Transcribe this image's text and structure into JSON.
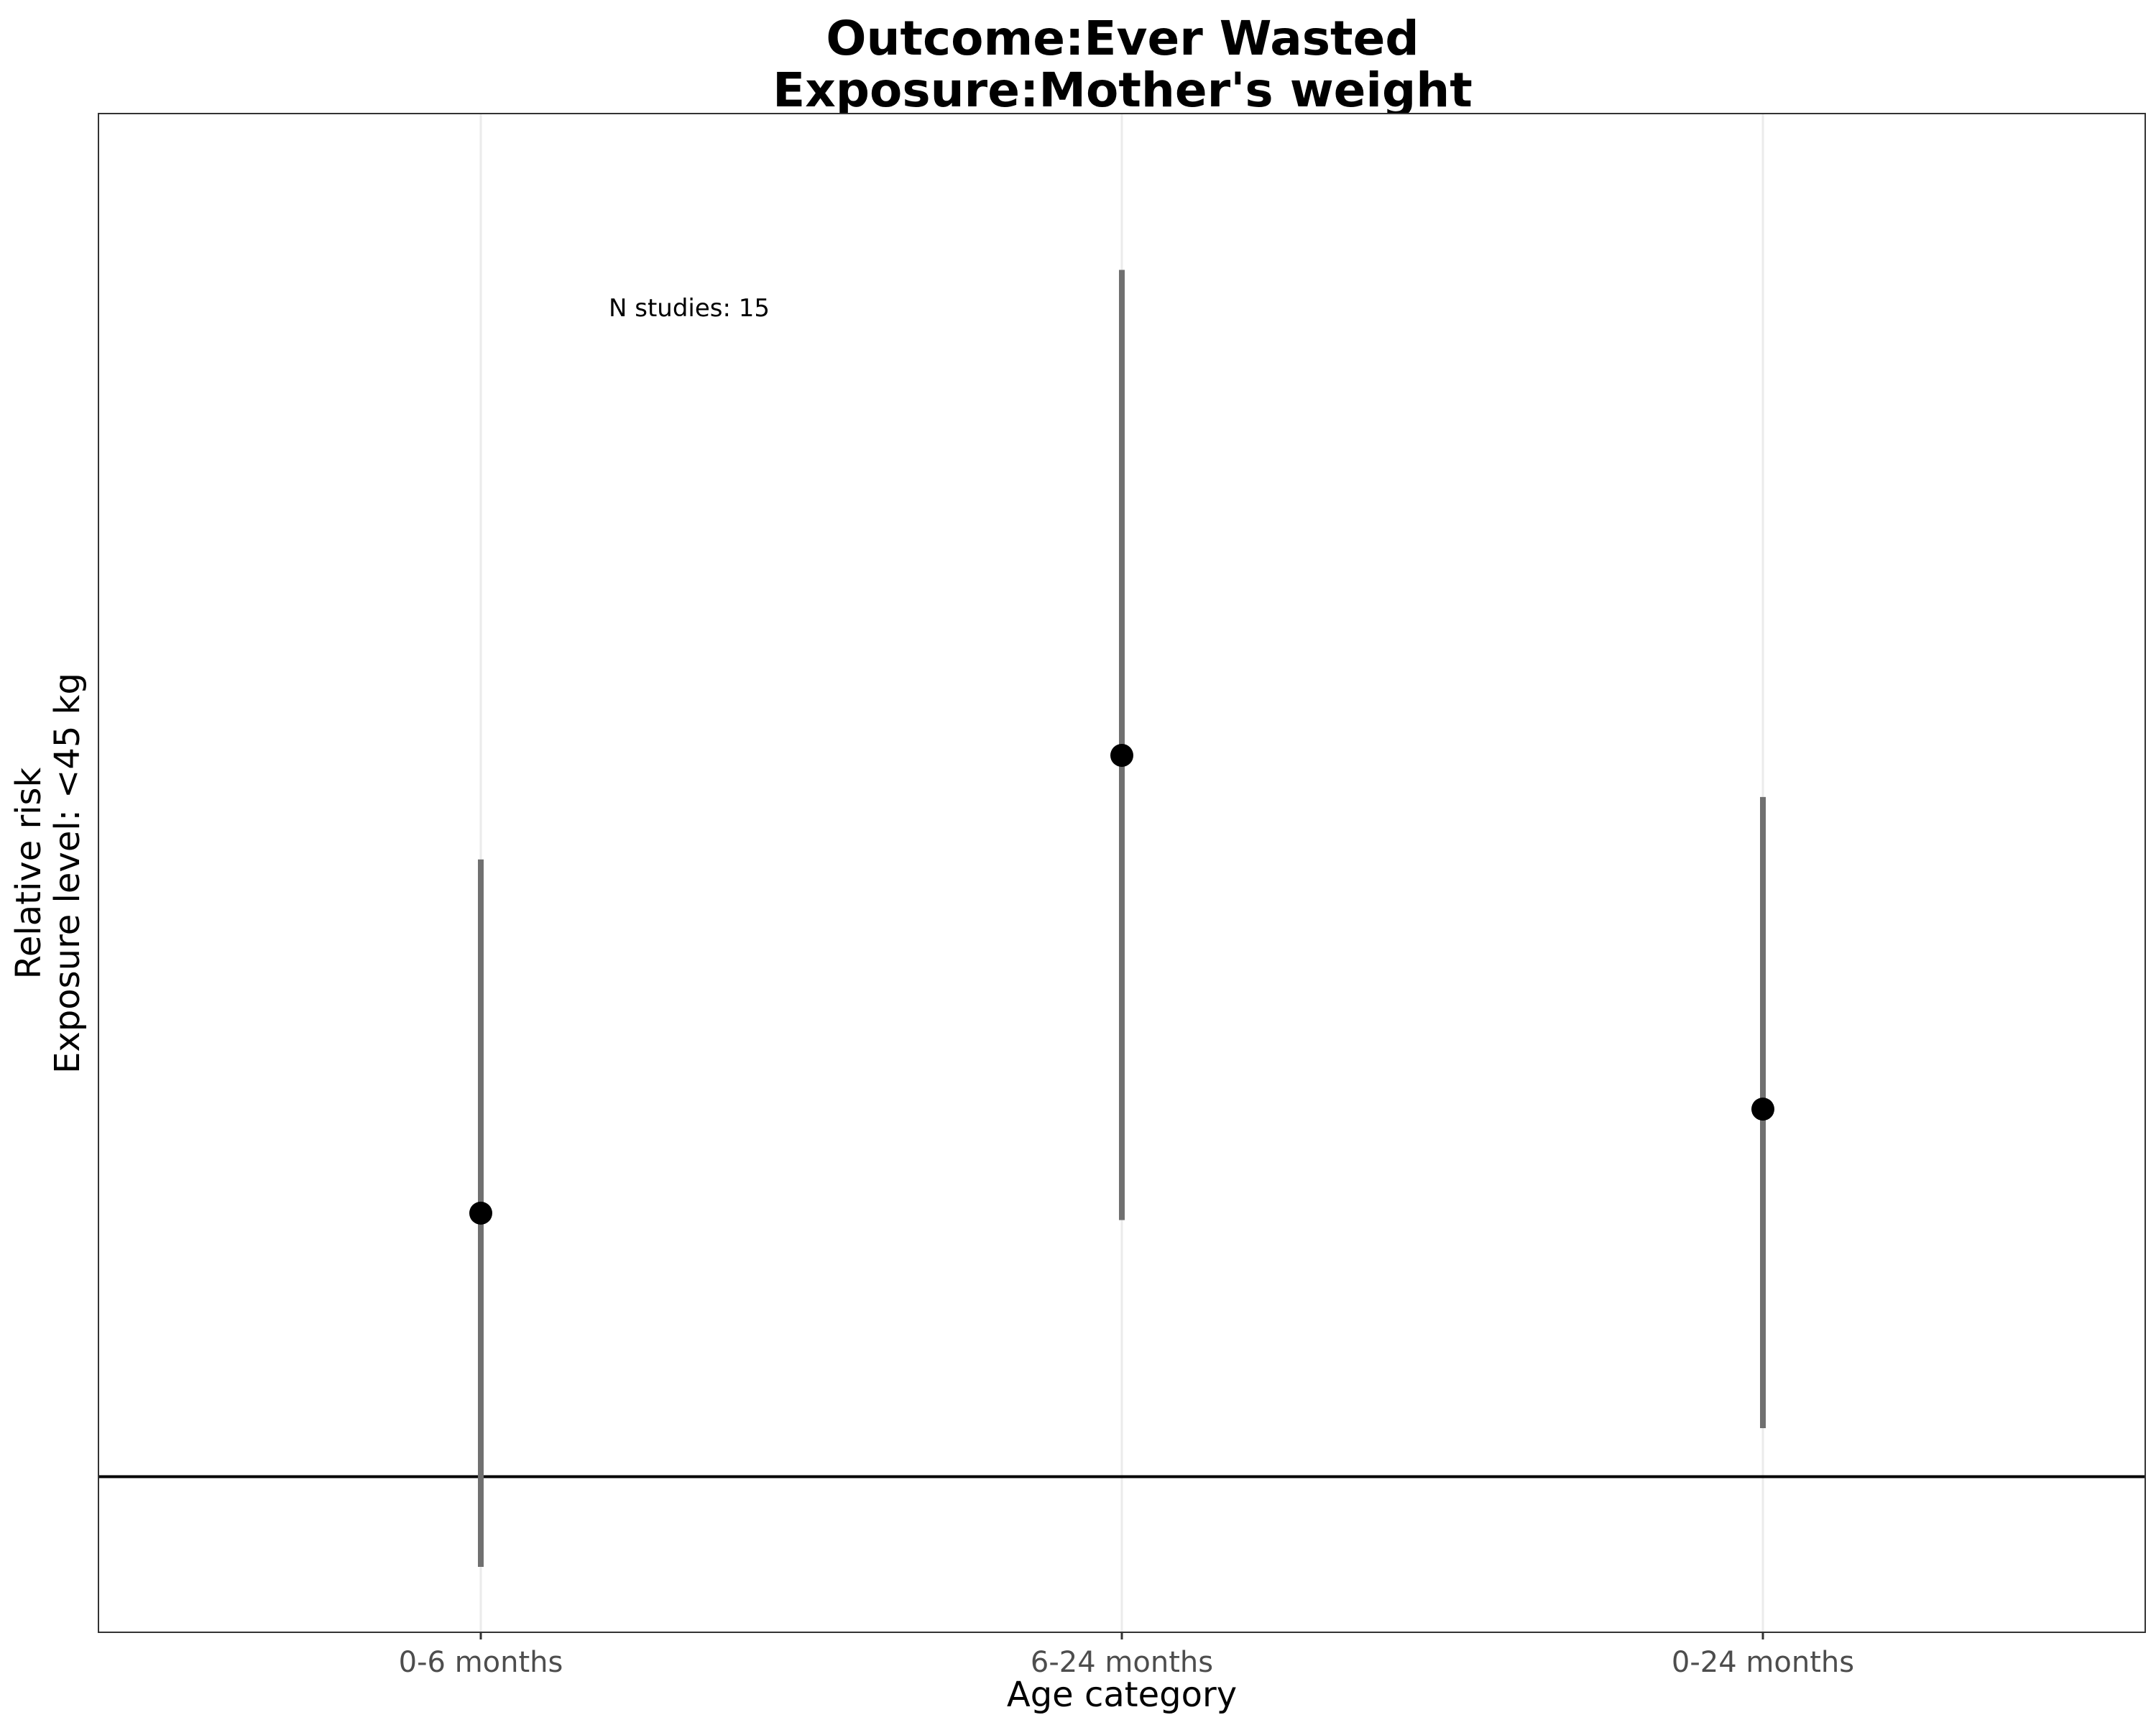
{
  "chart_data": {
    "type": "scatter",
    "title": "Outcome:Ever Wasted",
    "subtitle": "Exposure:Mother's weight",
    "xlabel": "Age category",
    "ylabel": "Relative risk",
    "ylabel2": "Exposure level: <45 kg",
    "categories": [
      "0-6 months",
      "6-24 months",
      "0-24 months"
    ],
    "series": [
      {
        "estimate": [
          1.19,
          1.52,
          1.265
        ],
        "lower": [
          0.935,
          1.185,
          1.035
        ],
        "upper": [
          1.445,
          1.87,
          1.49
        ]
      }
    ],
    "reference_line": 1.0,
    "ylim": [
      0.935,
      1.935
    ],
    "y_ticks_shown": false,
    "grid": "vertical major only",
    "annotations": [
      "N studies: 15"
    ],
    "colors": {
      "point": "#000000",
      "interval": "#707070",
      "reference_line": "#000000",
      "grid": "#ebebeb"
    }
  }
}
